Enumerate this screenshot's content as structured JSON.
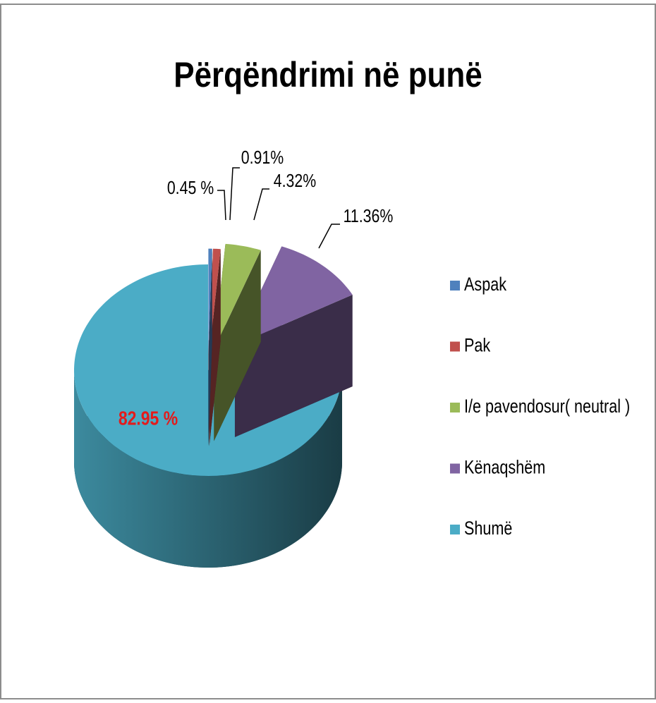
{
  "chart_data": {
    "type": "pie3d",
    "title": "Përqëndrimi në punë",
    "categories": [
      "Aspak",
      "Pak",
      "I/e pavendosur( neutral )",
      "Kënaqshëm",
      "Shumë"
    ],
    "values": [
      0.45,
      0.91,
      4.32,
      11.36,
      82.95
    ],
    "value_labels": [
      "0.45 %",
      "0.91%",
      "4.32%",
      "11.36%",
      "82.95 %"
    ],
    "colors": [
      "#4f81bd",
      "#c0504d",
      "#9bbb59",
      "#8064a2",
      "#4bacc6"
    ],
    "legend": "right"
  }
}
